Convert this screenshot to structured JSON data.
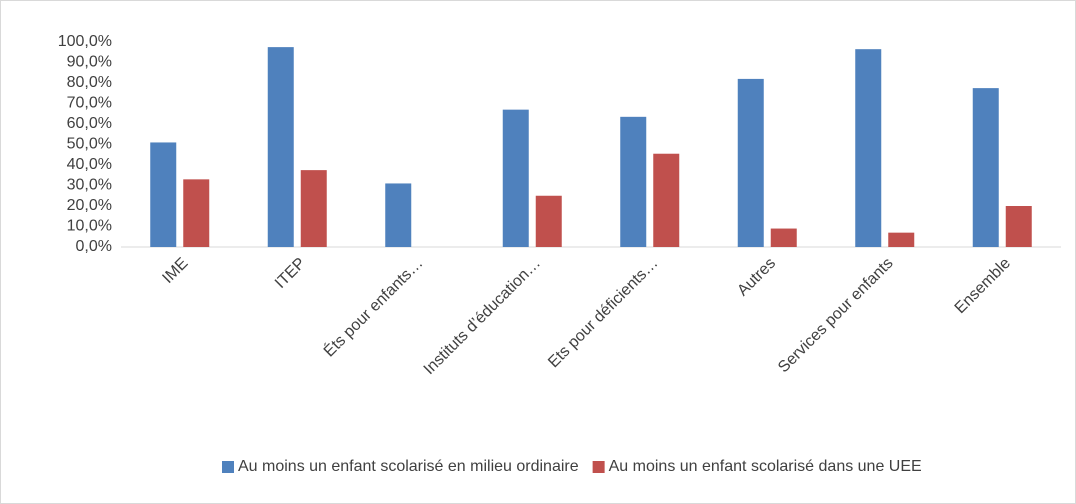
{
  "chart_data": {
    "type": "bar",
    "categories": [
      "IME",
      "ITEP",
      "Éts pour enfants…",
      "Instituts d’éducation…",
      "Ets pour déficients…",
      "Autres",
      "Services pour enfants",
      "Ensemble"
    ],
    "series": [
      {
        "name": "Au moins un enfant scolarisé en milieu ordinaire",
        "color": "#4f81bd",
        "values": [
          51,
          97.5,
          31,
          67,
          63.5,
          82,
          96.5,
          77.5
        ]
      },
      {
        "name": "Au moins un enfant scolarisé dans une UEE",
        "color": "#c0504d",
        "values": [
          33,
          37.5,
          0,
          25,
          45.5,
          9,
          7,
          20
        ]
      }
    ],
    "ylim": [
      0,
      100
    ],
    "yticks": [
      {
        "value": 0,
        "label": "0,0%"
      },
      {
        "value": 10,
        "label": "10,0%"
      },
      {
        "value": 20,
        "label": "20,0%"
      },
      {
        "value": 30,
        "label": "30,0%"
      },
      {
        "value": 40,
        "label": "40,0%"
      },
      {
        "value": 50,
        "label": "50,0%"
      },
      {
        "value": 60,
        "label": "60,0%"
      },
      {
        "value": 70,
        "label": "70,0%"
      },
      {
        "value": 80,
        "label": "80,0%"
      },
      {
        "value": 90,
        "label": "90,0%"
      },
      {
        "value": 100,
        "label": "100,0%"
      }
    ],
    "legend": "bottom"
  }
}
